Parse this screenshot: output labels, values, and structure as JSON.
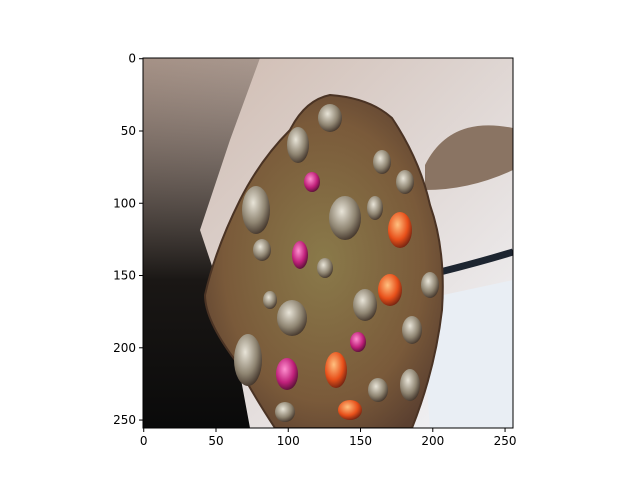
{
  "axes": {
    "xlim": [
      -0.5,
      255.5
    ],
    "ylim": [
      255.5,
      -0.5
    ],
    "xticks": [
      0,
      50,
      100,
      150,
      200,
      250
    ],
    "yticks": [
      0,
      50,
      100,
      150,
      200,
      250
    ]
  }
}
